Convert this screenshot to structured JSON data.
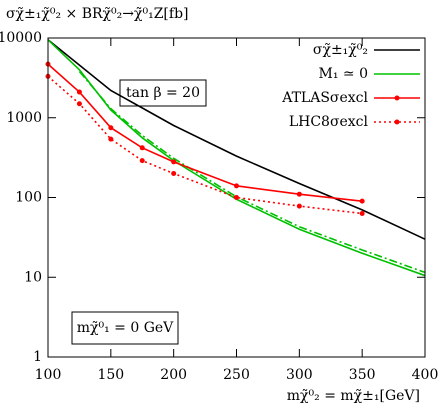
{
  "chart_data": {
    "type": "line",
    "y_label": "σχ̃±₁χ̃⁰₂ × BRχ̃⁰₂→χ̃⁰₁Z[fb]",
    "x_label": "mχ̃⁰₂ = mχ̃±₁[GeV]",
    "annotations": [
      "tan β = 20",
      "mχ̃⁰₁ = 0 GeV"
    ],
    "xlim": [
      100,
      400
    ],
    "xticks": [
      100,
      150,
      200,
      250,
      300,
      350,
      400
    ],
    "ylim": [
      1,
      10000
    ],
    "yticks": [
      1,
      10,
      100,
      1000,
      10000
    ],
    "log_y": true,
    "legend": "top-right",
    "series": [
      {
        "name": "σχ̃±₁χ̃⁰₂",
        "color": "#000000",
        "dash": "solid",
        "markers": false,
        "x": [
          100,
          150,
          200,
          250,
          300,
          350,
          400
        ],
        "values": [
          9500,
          2200,
          800,
          330,
          150,
          70,
          30
        ]
      },
      {
        "name": "M₁ ≃ 0",
        "color": "#00c000",
        "dash": "solid",
        "markers": false,
        "x": [
          100,
          125,
          150,
          175,
          200,
          250,
          300,
          350,
          400
        ],
        "values": [
          9500,
          4000,
          1250,
          560,
          290,
          95,
          40,
          20,
          10.5
        ]
      },
      {
        "color": "#00c000",
        "dash": "dashdot",
        "markers": false,
        "x": [
          125,
          150,
          175,
          200,
          250,
          300,
          350,
          400
        ],
        "values": [
          3800,
          1300,
          600,
          310,
          102,
          43,
          22,
          11.5
        ]
      },
      {
        "name": "ATLASσexcl",
        "color": "#ff0000",
        "dash": "solid",
        "markers": true,
        "x": [
          100,
          125,
          150,
          175,
          200,
          250,
          300,
          350
        ],
        "values": [
          4700,
          2100,
          750,
          420,
          280,
          140,
          110,
          90
        ]
      },
      {
        "name": "LHC8σexcl",
        "color": "#ff0000",
        "dash": "dotted",
        "markers": true,
        "x": [
          100,
          125,
          150,
          175,
          200,
          250,
          300,
          350
        ],
        "values": [
          3300,
          1500,
          540,
          290,
          200,
          100,
          78,
          63
        ]
      }
    ]
  }
}
